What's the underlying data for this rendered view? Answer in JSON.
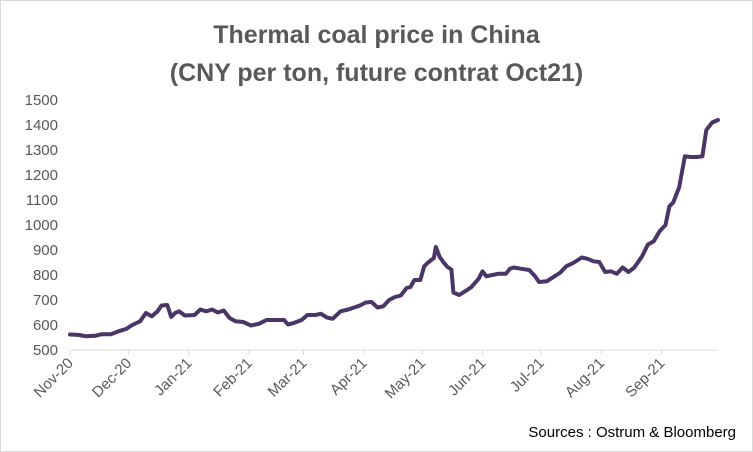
{
  "chart_data": {
    "type": "line",
    "title": "Thermal coal price in China",
    "subtitle": "(CNY per ton, future contrat Oct21)",
    "xlabel": "",
    "ylabel": "",
    "ylim": [
      500,
      1500
    ],
    "yticks": [
      "500",
      "600",
      "700",
      "800",
      "900",
      "1000",
      "1100",
      "1200",
      "1300",
      "1400",
      "1500"
    ],
    "xticks": [
      "Nov-20",
      "Dec-20",
      "Jan-21",
      "Feb-21",
      "Mar-21",
      "Apr-21",
      "May-21",
      "Jun-21",
      "Jul-21",
      "Aug-21",
      "Sep-21"
    ],
    "xrange": [
      "2020-11-01",
      "2021-09-30"
    ],
    "grid": false,
    "line_color": "#4b3566",
    "series": [
      {
        "points": [
          [
            "2020-11-01",
            562
          ],
          [
            "2020-11-06",
            560
          ],
          [
            "2020-11-09",
            555
          ],
          [
            "2020-11-14",
            557
          ],
          [
            "2020-11-17",
            563
          ],
          [
            "2020-11-22",
            563
          ],
          [
            "2020-11-26",
            575
          ],
          [
            "2020-11-30",
            585
          ],
          [
            "2020-12-03",
            600
          ],
          [
            "2020-12-07",
            615
          ],
          [
            "2020-12-10",
            648
          ],
          [
            "2020-12-13",
            635
          ],
          [
            "2020-12-16",
            655
          ],
          [
            "2020-12-18",
            678
          ],
          [
            "2020-12-21",
            680
          ],
          [
            "2020-12-23",
            632
          ],
          [
            "2020-12-25",
            648
          ],
          [
            "2020-12-27",
            655
          ],
          [
            "2020-12-30",
            638
          ],
          [
            "2021-01-04",
            640
          ],
          [
            "2021-01-07",
            662
          ],
          [
            "2021-01-10",
            655
          ],
          [
            "2021-01-13",
            662
          ],
          [
            "2021-01-16",
            650
          ],
          [
            "2021-01-19",
            658
          ],
          [
            "2021-01-22",
            628
          ],
          [
            "2021-01-25",
            615
          ],
          [
            "2021-01-29",
            612
          ],
          [
            "2021-02-02",
            598
          ],
          [
            "2021-02-06",
            605
          ],
          [
            "2021-02-10",
            620
          ],
          [
            "2021-02-15",
            620
          ],
          [
            "2021-02-19",
            620
          ],
          [
            "2021-02-21",
            602
          ],
          [
            "2021-02-24",
            608
          ],
          [
            "2021-02-28",
            620
          ],
          [
            "2021-03-03",
            640
          ],
          [
            "2021-03-07",
            640
          ],
          [
            "2021-03-10",
            645
          ],
          [
            "2021-03-13",
            630
          ],
          [
            "2021-03-16",
            625
          ],
          [
            "2021-03-20",
            655
          ],
          [
            "2021-03-24",
            662
          ],
          [
            "2021-03-27",
            670
          ],
          [
            "2021-03-30",
            678
          ],
          [
            "2021-04-02",
            690
          ],
          [
            "2021-04-05",
            692
          ],
          [
            "2021-04-08",
            670
          ],
          [
            "2021-04-11",
            675
          ],
          [
            "2021-04-14",
            700
          ],
          [
            "2021-04-17",
            712
          ],
          [
            "2021-04-20",
            718
          ],
          [
            "2021-04-23",
            748
          ],
          [
            "2021-04-25",
            752
          ],
          [
            "2021-04-27",
            780
          ],
          [
            "2021-04-30",
            780
          ],
          [
            "2021-05-02",
            835
          ],
          [
            "2021-05-04",
            850
          ],
          [
            "2021-05-07",
            868
          ],
          [
            "2021-05-08",
            912
          ],
          [
            "2021-05-10",
            872
          ],
          [
            "2021-05-12",
            850
          ],
          [
            "2021-05-14",
            832
          ],
          [
            "2021-05-16",
            822
          ],
          [
            "2021-05-17",
            730
          ],
          [
            "2021-05-20",
            720
          ],
          [
            "2021-05-23",
            735
          ],
          [
            "2021-05-26",
            750
          ],
          [
            "2021-05-30",
            785
          ],
          [
            "2021-06-01",
            815
          ],
          [
            "2021-06-03",
            795
          ],
          [
            "2021-06-06",
            800
          ],
          [
            "2021-06-09",
            805
          ],
          [
            "2021-06-13",
            805
          ],
          [
            "2021-06-15",
            825
          ],
          [
            "2021-06-17",
            830
          ],
          [
            "2021-06-21",
            825
          ],
          [
            "2021-06-25",
            820
          ],
          [
            "2021-06-28",
            795
          ],
          [
            "2021-06-30",
            772
          ],
          [
            "2021-07-04",
            775
          ],
          [
            "2021-07-08",
            795
          ],
          [
            "2021-07-11",
            810
          ],
          [
            "2021-07-14",
            835
          ],
          [
            "2021-07-18",
            850
          ],
          [
            "2021-07-22",
            870
          ],
          [
            "2021-07-25",
            865
          ],
          [
            "2021-07-28",
            855
          ],
          [
            "2021-07-31",
            852
          ],
          [
            "2021-08-03",
            812
          ],
          [
            "2021-08-06",
            815
          ],
          [
            "2021-08-09",
            805
          ],
          [
            "2021-08-12",
            830
          ],
          [
            "2021-08-15",
            812
          ],
          [
            "2021-08-18",
            830
          ],
          [
            "2021-08-22",
            875
          ],
          [
            "2021-08-25",
            922
          ],
          [
            "2021-08-28",
            935
          ],
          [
            "2021-08-31",
            975
          ],
          [
            "2021-09-03",
            1000
          ],
          [
            "2021-09-05",
            1075
          ],
          [
            "2021-09-07",
            1090
          ],
          [
            "2021-09-10",
            1150
          ],
          [
            "2021-09-13",
            1275
          ],
          [
            "2021-09-16",
            1272
          ],
          [
            "2021-09-19",
            1272
          ],
          [
            "2021-09-22",
            1275
          ],
          [
            "2021-09-24",
            1380
          ],
          [
            "2021-09-27",
            1410
          ],
          [
            "2021-09-30",
            1420
          ]
        ]
      }
    ]
  },
  "source": "Sources : Ostrum & Bloomberg"
}
